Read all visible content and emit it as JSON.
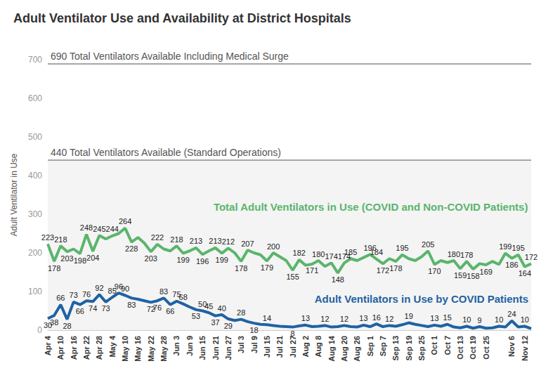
{
  "chart_data": {
    "type": "line",
    "title": "Adult Ventilator Use and Availability at District Hospitals",
    "y_label": "Adult Ventilator in Use",
    "categories": [
      "Apr 4",
      null,
      "Apr 10",
      null,
      "Apr 16",
      null,
      "Apr 22",
      null,
      "Apr 28",
      null,
      "May 4",
      null,
      "May 10",
      null,
      "May 16",
      null,
      "May 22",
      null,
      "May 28",
      null,
      "Jun 3",
      null,
      "Jun 9",
      null,
      "Jun 15",
      null,
      "Jun 21",
      null,
      "Jun 27",
      null,
      "Jul 3",
      null,
      "Jul 9",
      null,
      "Jul 15",
      null,
      "Jul 21",
      null,
      "Jul 27",
      null,
      "Aug 2",
      null,
      "Aug 8",
      null,
      "Aug 14",
      null,
      "Aug 20",
      null,
      "Aug 26",
      null,
      "Sep 1",
      null,
      "Sep 7",
      null,
      "Sep 13",
      null,
      "Sep 19",
      null,
      "Sep 25",
      null,
      "Oct 1",
      null,
      "Oct 7",
      null,
      "Oct 13",
      null,
      "Oct 19",
      null,
      "Oct 25",
      null,
      null,
      null,
      "Nov 6",
      null,
      "Nov 12",
      null
    ],
    "series": [
      {
        "name": "Total Adult Ventilators in Use (COVID and Non-COVID Patients)",
        "color": "#5ab56c",
        "values": [
          223,
          178,
          218,
          203,
          210,
          198,
          248,
          204,
          245,
          236,
          244,
          250,
          264,
          228,
          240,
          225,
          203,
          222,
          210,
          205,
          218,
          199,
          205,
          213,
          196,
          205,
          213,
          199,
          212,
          200,
          178,
          207,
          200,
          195,
          179,
          200,
          190,
          180,
          155,
          182,
          168,
          171,
          180,
          165,
          174,
          148,
          174,
          185,
          180,
          188,
          196,
          184,
          172,
          185,
          178,
          195,
          185,
          180,
          190,
          205,
          170,
          180,
          175,
          180,
          159,
          178,
          158,
          172,
          169,
          178,
          170,
          199,
          186,
          195,
          164,
          172
        ],
        "value_labels": [
          "223",
          "178",
          "218",
          "203",
          null,
          "198",
          "248",
          "204",
          "245",
          null,
          "244",
          null,
          "264",
          "228",
          null,
          null,
          "203",
          "222",
          null,
          null,
          "218",
          "199",
          null,
          "213",
          "196",
          null,
          "213",
          "199",
          "212",
          null,
          "178",
          "207",
          null,
          null,
          "179",
          "200",
          null,
          null,
          "155",
          "182",
          null,
          "171",
          "180",
          null,
          "174",
          "148",
          "174",
          "185",
          null,
          null,
          "196",
          "184",
          "172",
          null,
          "178",
          "195",
          null,
          null,
          null,
          "205",
          "170",
          null,
          null,
          "180",
          "159",
          "178",
          "158",
          null,
          "169",
          null,
          null,
          "199",
          "186",
          "195",
          "164",
          "172"
        ]
      },
      {
        "name": "Adult Ventilators in Use by COVID Patients",
        "color": "#1f62a3",
        "values": [
          30,
          38,
          66,
          28,
          73,
          66,
          76,
          74,
          92,
          73,
          85,
          96,
          90,
          83,
          80,
          76,
          72,
          76,
          83,
          66,
          75,
          68,
          60,
          53,
          50,
          45,
          37,
          40,
          29,
          25,
          28,
          22,
          18,
          15,
          14,
          12,
          10,
          9,
          8,
          11,
          13,
          9,
          10,
          12,
          8,
          9,
          12,
          9,
          8,
          13,
          9,
          16,
          9,
          12,
          10,
          14,
          19,
          15,
          12,
          9,
          13,
          10,
          15,
          8,
          6,
          10,
          5,
          9,
          5,
          6,
          10,
          8,
          24,
          8,
          10,
          4
        ],
        "value_labels": [
          "30",
          "38",
          "66",
          "28",
          "73",
          "66",
          "76",
          "74",
          "92",
          "73",
          "85",
          "96",
          "90",
          "83",
          null,
          null,
          "72",
          "76",
          "83",
          "66",
          "75",
          "68",
          null,
          "53",
          "50",
          "45",
          "37",
          "40",
          "29",
          null,
          "28",
          null,
          "18",
          null,
          "14",
          null,
          null,
          null,
          "8",
          null,
          "13",
          null,
          null,
          "12",
          null,
          null,
          "12",
          null,
          null,
          "13",
          null,
          "16",
          null,
          "12",
          null,
          null,
          "19",
          null,
          null,
          null,
          "13",
          null,
          "15",
          null,
          null,
          "10",
          null,
          "9",
          null,
          null,
          "10",
          null,
          "24",
          null,
          "10",
          null
        ]
      }
    ],
    "reference_lines": [
      {
        "value": 690,
        "label": "690 Total Ventilators Available Including Medical Surge"
      },
      {
        "value": 440,
        "label": "440 Total Ventilators Available (Standard Operations)"
      }
    ],
    "ylim": [
      0,
      700
    ],
    "yticks": [
      0,
      100,
      200,
      300,
      400,
      500,
      600,
      700
    ],
    "grid": false
  }
}
